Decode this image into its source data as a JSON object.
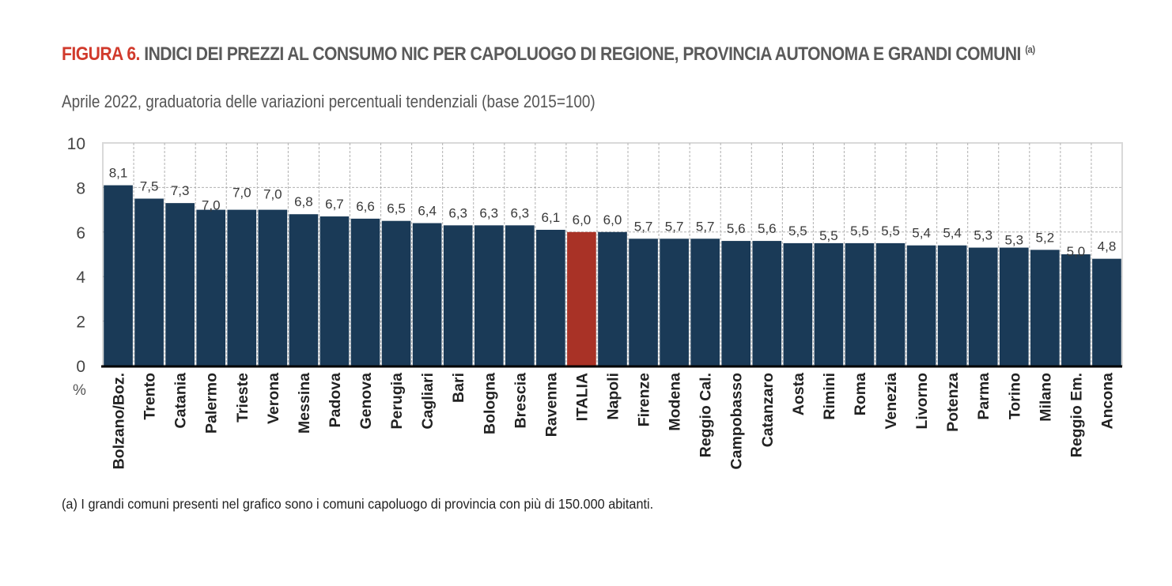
{
  "header": {
    "figure_label": "FIGURA 6.",
    "title_text": " INDICI DEI PREZZI AL CONSUMO NIC PER CAPOLUOGO DI REGIONE, PROVINCIA AUTONOMA E GRANDI COMUNI ",
    "title_note_ref": "(a)",
    "subtitle": "Aprile 2022, graduatoria delle variazioni percentuali tendenziali (base 2015=100)"
  },
  "footnote": "(a)  I grandi comuni presenti nel grafico sono i comuni capoluogo di provincia con più di 150.000 abitanti.",
  "colors": {
    "bar": "#1a3a57",
    "highlight_bar": "#a93226",
    "title_accent": "#d13a2c",
    "grid": "#b0b0b0"
  },
  "chart_data": {
    "type": "bar",
    "title": "INDICI DEI PREZZI AL CONSUMO NIC PER CAPOLUOGO DI REGIONE, PROVINCIA AUTONOMA E GRANDI COMUNI",
    "subtitle": "Aprile 2022, graduatoria delle variazioni percentuali tendenziali (base 2015=100)",
    "xlabel": "",
    "ylabel": "%",
    "ylim": [
      0,
      10
    ],
    "yticks": [
      0,
      2,
      4,
      6,
      8,
      10
    ],
    "grid": true,
    "legend": "none",
    "highlight_category": "ITALIA",
    "categories": [
      "Bolzano/Boz.",
      "Trento",
      "Catania",
      "Palermo",
      "Trieste",
      "Verona",
      "Messina",
      "Padova",
      "Genova",
      "Perugia",
      "Cagliari",
      "Bari",
      "Bologna",
      "Brescia",
      "Ravenna",
      "ITALIA",
      "Napoli",
      "Firenze",
      "Modena",
      "Reggio Cal.",
      "Campobasso",
      "Catanzaro",
      "Aosta",
      "Rimini",
      "Roma",
      "Venezia",
      "Livorno",
      "Potenza",
      "Parma",
      "Torino",
      "Milano",
      "Reggio Em.",
      "Ancona"
    ],
    "values": [
      8.1,
      7.5,
      7.3,
      7.0,
      7.0,
      7.0,
      6.8,
      6.7,
      6.6,
      6.5,
      6.4,
      6.3,
      6.3,
      6.3,
      6.1,
      6.0,
      6.0,
      5.7,
      5.7,
      5.7,
      5.6,
      5.6,
      5.5,
      5.5,
      5.5,
      5.5,
      5.4,
      5.4,
      5.3,
      5.3,
      5.2,
      5.0,
      4.8
    ],
    "value_labels": [
      "8,1",
      "7,5",
      "7,3",
      "7,0",
      "7,0",
      "7,0",
      "6,8",
      "6,7",
      "6,6",
      "6,5",
      "6,4",
      "6,3",
      "6,3",
      "6,3",
      "6,1",
      "6,0",
      "6,0",
      "5,7",
      "5,7",
      "5,7",
      "5,6",
      "5,6",
      "5,5",
      "5,5",
      "5,5",
      "5,5",
      "5,4",
      "5,4",
      "5,3",
      "5,3",
      "5,2",
      "5,0",
      "4,8"
    ]
  }
}
